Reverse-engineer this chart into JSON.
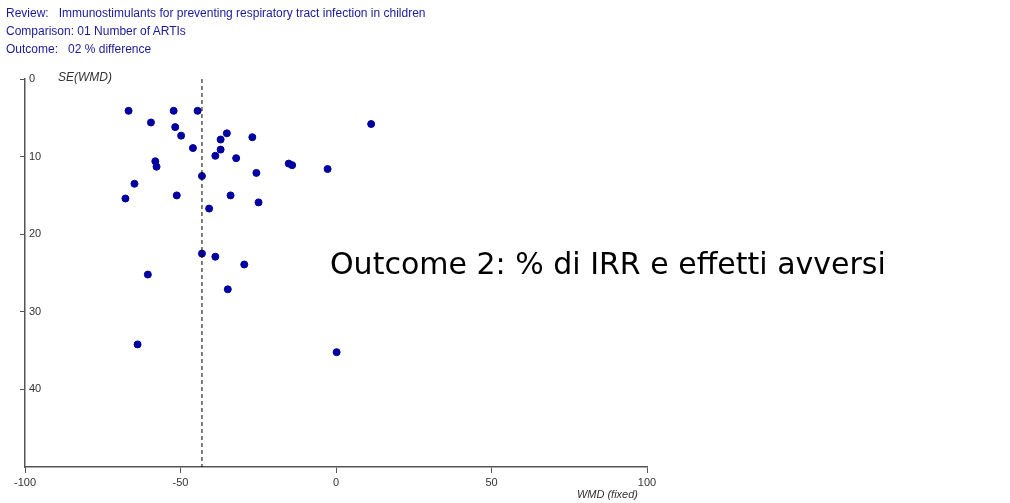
{
  "chart_data": {
    "type": "scatter",
    "title": "Review:   Immunostimulants for preventing respiratory tract infection in children",
    "subtitle": "Comparison: 01 Number of ARTIs",
    "annotations": [
      "Outcome:   02 % difference",
      "Outcome 2: % di IRR e effetti avversi"
    ],
    "xlabel": "WMD (fixed)",
    "ylabel": "SE(WMD)",
    "series": [
      {
        "color": "#0000a0",
        "x": [
          -66.7,
          -59.5,
          -52.2,
          -44.5,
          -51.7,
          -49.8,
          -46,
          -35.1,
          -37.1,
          -37.1,
          -38.8,
          -26.9,
          -32.1,
          -58.1,
          -57.7,
          -43.1,
          -64.8,
          -67.7,
          -51.2,
          -33.9,
          -25.6,
          -24.9,
          -40.8,
          -15.2,
          -14.1,
          -2.7,
          11.3,
          -43.1,
          -38.8,
          -29.5,
          -60.5,
          -34.8,
          -63.8,
          0.2
        ],
        "values": [
          4.1,
          5.6,
          4.1,
          4.1,
          6.2,
          7.3,
          8.9,
          7.0,
          7.8,
          9.1,
          9.9,
          7.5,
          10.2,
          10.6,
          11.3,
          12.5,
          13.5,
          15.4,
          15.0,
          15.0,
          12.1,
          15.9,
          16.7,
          10.9,
          11.1,
          11.6,
          5.8,
          22.5,
          22.9,
          23.9,
          25.2,
          27.1,
          34.2,
          35.2
        ]
      }
    ],
    "xlim": [
      -100,
      100
    ],
    "xticks": [
      -100,
      -50,
      0,
      50,
      100
    ],
    "ylim": [
      50,
      0
    ],
    "yticks": [
      0,
      10,
      20,
      30,
      40
    ],
    "ref_lines": [
      {
        "axis": "x",
        "value": -43.1,
        "line_style": "dashed",
        "color": "#000000"
      }
    ],
    "marker": "circle",
    "grid": false,
    "legend": false
  }
}
